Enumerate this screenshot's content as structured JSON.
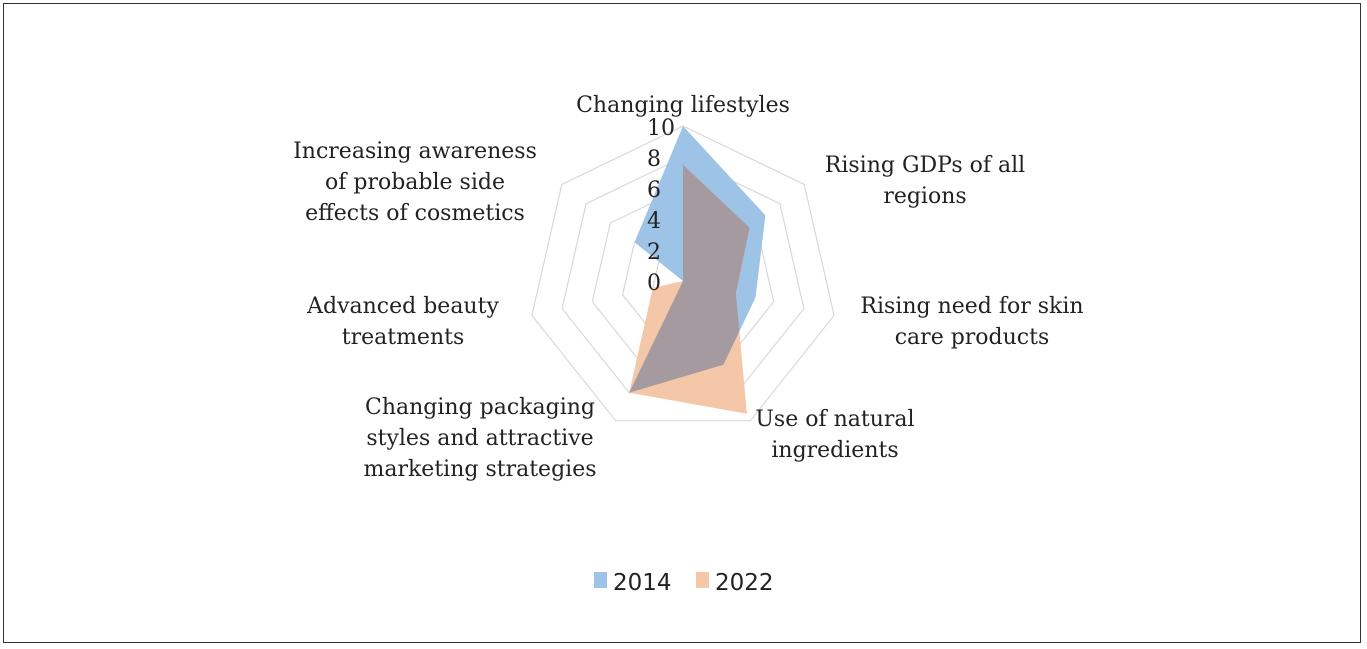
{
  "chart_data": {
    "type": "radar",
    "title": "",
    "categories": [
      "Changing lifestyles",
      "Rising GDPs of all regions",
      "Rising need for skin care products",
      "Use of natural ingredients",
      "Changing packaging styles and attractive marketing strategies",
      "Advanced beauty treatments",
      "Increasing awareness of probable side effects of cosmetics"
    ],
    "category_lines": [
      [
        "Changing lifestyles"
      ],
      [
        "Rising GDPs of all",
        "regions"
      ],
      [
        "Rising need for skin",
        "care products"
      ],
      [
        "Use of natural",
        "ingredients"
      ],
      [
        "Changing packaging",
        "styles and attractive",
        "marketing strategies"
      ],
      [
        "Advanced beauty",
        "treatments"
      ],
      [
        "Increasing awareness",
        "of probable side",
        "effects of cosmetics"
      ]
    ],
    "series": [
      {
        "name": "2014",
        "color": "#9dc3e6",
        "values": [
          10,
          6.8,
          4.8,
          6,
          8,
          0,
          4
        ]
      },
      {
        "name": "2022",
        "color": "#f4c7a9",
        "values": [
          7.5,
          5.5,
          3.5,
          9.5,
          8,
          2,
          0
        ]
      }
    ],
    "overlap_color": "#a59a9f",
    "rlim": [
      0,
      10
    ],
    "ticks": [
      "0",
      "2",
      "4",
      "6",
      "8",
      "10"
    ],
    "legend_position": "bottom"
  }
}
